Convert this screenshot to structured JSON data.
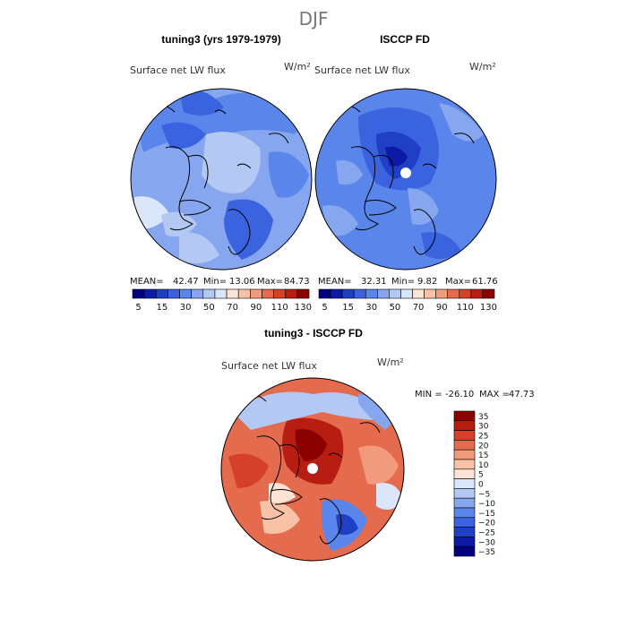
{
  "figure": {
    "season": "DJF",
    "panel_left_title": "tuning3 (yrs 1979-1979)",
    "panel_right_title": "ISCCP FD",
    "panel_diff_title": "tuning3 - ISCCP FD"
  },
  "palettes": {
    "sequential": [
      "#00007f",
      "#0d1aa6",
      "#1f3fc4",
      "#3a63e0",
      "#5a85ea",
      "#86a6ef",
      "#b3c9f4",
      "#dbe6fa",
      "#fbe4d6",
      "#f8c2a6",
      "#f29a7c",
      "#e46b4e",
      "#d4402a",
      "#b81d12",
      "#8b0000"
    ],
    "diverging": [
      "#00007f",
      "#0d1aa6",
      "#1f3fc4",
      "#3a63e0",
      "#5a85ea",
      "#86a6ef",
      "#b3c9f4",
      "#dbe6fa",
      "#fbe4d6",
      "#f8c2a6",
      "#f29a7c",
      "#e46b4e",
      "#d4402a",
      "#b81d12",
      "#8b0000"
    ],
    "coast_color": "#000000"
  },
  "chart_data": [
    {
      "type": "heatmap",
      "projection": "north-polar-stereographic",
      "panel": "top-left",
      "title": "tuning3 (yrs 1979-1979)",
      "field_label": "Surface net LW flux",
      "units": "W/m²",
      "stats": {
        "mean_label": "MEAN=",
        "mean": "42.47",
        "min_label": "Min=",
        "min": "13.06",
        "max_label": "Max=",
        "max": "84.73"
      },
      "colorbar": {
        "levels": [
          5,
          10,
          15,
          20,
          30,
          40,
          50,
          60,
          70,
          80,
          90,
          100,
          110,
          120,
          130
        ],
        "tick_labels": [
          "5",
          "15",
          "30",
          "50",
          "70",
          "90",
          "110",
          "130"
        ],
        "orientation": "horizontal"
      }
    },
    {
      "type": "heatmap",
      "projection": "north-polar-stereographic",
      "panel": "top-right",
      "title": "ISCCP FD",
      "field_label": "Surface net LW flux",
      "units": "W/m²",
      "stats": {
        "mean_label": "MEAN=",
        "mean": "32.31",
        "min_label": "Min=",
        "min": "9.82",
        "max_label": "Max=",
        "max": "61.76"
      },
      "colorbar": {
        "levels": [
          5,
          10,
          15,
          20,
          30,
          40,
          50,
          60,
          70,
          80,
          90,
          100,
          110,
          120,
          130
        ],
        "tick_labels": [
          "5",
          "15",
          "30",
          "50",
          "70",
          "90",
          "110",
          "130"
        ],
        "orientation": "horizontal"
      }
    },
    {
      "type": "heatmap",
      "projection": "north-polar-stereographic",
      "panel": "bottom",
      "title": "tuning3 - ISCCP FD",
      "field_label": "Surface net LW flux",
      "units": "W/m²",
      "stats": {
        "min_label": "MIN =",
        "min": "-26.10",
        "max_label": "MAX =",
        "max": "47.73"
      },
      "colorbar": {
        "levels": [
          -35,
          -30,
          -25,
          -20,
          -15,
          -10,
          -5,
          0,
          5,
          10,
          15,
          20,
          25,
          30,
          35
        ],
        "tick_labels": [
          "35",
          "30",
          "25",
          "20",
          "15",
          "10",
          "5",
          "0",
          "−5",
          "−10",
          "−15",
          "−20",
          "−25",
          "−30",
          "−35"
        ],
        "orientation": "vertical"
      }
    }
  ]
}
